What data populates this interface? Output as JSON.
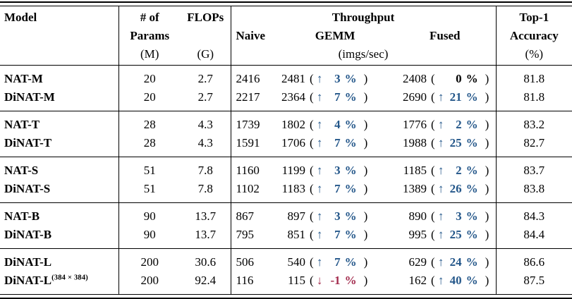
{
  "colors": {
    "up": "#24578a",
    "down": "#a32c4e",
    "text": "#000000",
    "rule": "#000000"
  },
  "icons": {
    "up_arrow": "↑",
    "down_arrow": "↓"
  },
  "punct": {
    "open": "(",
    "close": ")",
    "percent": "%"
  },
  "table": {
    "header": {
      "model": "Model",
      "params_line1": "# of",
      "params_line2": "Params",
      "params_unit": "(M)",
      "flops": "FLOPs",
      "flops_unit": "(G)",
      "throughput": "Throughput",
      "naive": "Naive",
      "gemm": "GEMM",
      "fused": "Fused",
      "throughput_unit": "(imgs/sec)",
      "top1_line1": "Top-1",
      "top1_line2": "Accuracy",
      "top1_unit": "(%)"
    },
    "rows": [
      {
        "model": "NAT-M",
        "model_sup": "",
        "params": "20",
        "flops": "2.7",
        "naive": "2416",
        "gemm_value": "2481",
        "gemm_dir": "up",
        "gemm_delta": "3",
        "fused_value": "2408",
        "fused_dir": "none",
        "fused_delta": "0",
        "top1": "81.8",
        "group_start": true,
        "group_end": false
      },
      {
        "model": "DiNAT-M",
        "model_sup": "",
        "params": "20",
        "flops": "2.7",
        "naive": "2217",
        "gemm_value": "2364",
        "gemm_dir": "up",
        "gemm_delta": "7",
        "fused_value": "2690",
        "fused_dir": "up",
        "fused_delta": "21",
        "top1": "81.8",
        "group_start": false,
        "group_end": true
      },
      {
        "model": "NAT-T",
        "model_sup": "",
        "params": "28",
        "flops": "4.3",
        "naive": "1739",
        "gemm_value": "1802",
        "gemm_dir": "up",
        "gemm_delta": "4",
        "fused_value": "1776",
        "fused_dir": "up",
        "fused_delta": "2",
        "top1": "83.2",
        "group_start": true,
        "group_end": false
      },
      {
        "model": "DiNAT-T",
        "model_sup": "",
        "params": "28",
        "flops": "4.3",
        "naive": "1591",
        "gemm_value": "1706",
        "gemm_dir": "up",
        "gemm_delta": "7",
        "fused_value": "1988",
        "fused_dir": "up",
        "fused_delta": "25",
        "top1": "82.7",
        "group_start": false,
        "group_end": true
      },
      {
        "model": "NAT-S",
        "model_sup": "",
        "params": "51",
        "flops": "7.8",
        "naive": "1160",
        "gemm_value": "1199",
        "gemm_dir": "up",
        "gemm_delta": "3",
        "fused_value": "1185",
        "fused_dir": "up",
        "fused_delta": "2",
        "top1": "83.7",
        "group_start": true,
        "group_end": false
      },
      {
        "model": "DiNAT-S",
        "model_sup": "",
        "params": "51",
        "flops": "7.8",
        "naive": "1102",
        "gemm_value": "1183",
        "gemm_dir": "up",
        "gemm_delta": "7",
        "fused_value": "1389",
        "fused_dir": "up",
        "fused_delta": "26",
        "top1": "83.8",
        "group_start": false,
        "group_end": true
      },
      {
        "model": "NAT-B",
        "model_sup": "",
        "params": "90",
        "flops": "13.7",
        "naive": "867",
        "gemm_value": "897",
        "gemm_dir": "up",
        "gemm_delta": "3",
        "fused_value": "890",
        "fused_dir": "up",
        "fused_delta": "3",
        "top1": "84.3",
        "group_start": true,
        "group_end": false
      },
      {
        "model": "DiNAT-B",
        "model_sup": "",
        "params": "90",
        "flops": "13.7",
        "naive": "795",
        "gemm_value": "851",
        "gemm_dir": "up",
        "gemm_delta": "7",
        "fused_value": "995",
        "fused_dir": "up",
        "fused_delta": "25",
        "top1": "84.4",
        "group_start": false,
        "group_end": true
      },
      {
        "model": "DiNAT-L",
        "model_sup": "",
        "params": "200",
        "flops": "30.6",
        "naive": "506",
        "gemm_value": "540",
        "gemm_dir": "up",
        "gemm_delta": "7",
        "fused_value": "629",
        "fused_dir": "up",
        "fused_delta": "24",
        "top1": "86.6",
        "group_start": true,
        "group_end": false
      },
      {
        "model": "DiNAT-L",
        "model_sup": "(384 × 384)",
        "params": "200",
        "flops": "92.4",
        "naive": "116",
        "gemm_value": "115",
        "gemm_dir": "down",
        "gemm_delta": "-1",
        "fused_value": "162",
        "fused_dir": "up",
        "fused_delta": "40",
        "top1": "87.5",
        "group_start": false,
        "group_end": true
      }
    ]
  }
}
